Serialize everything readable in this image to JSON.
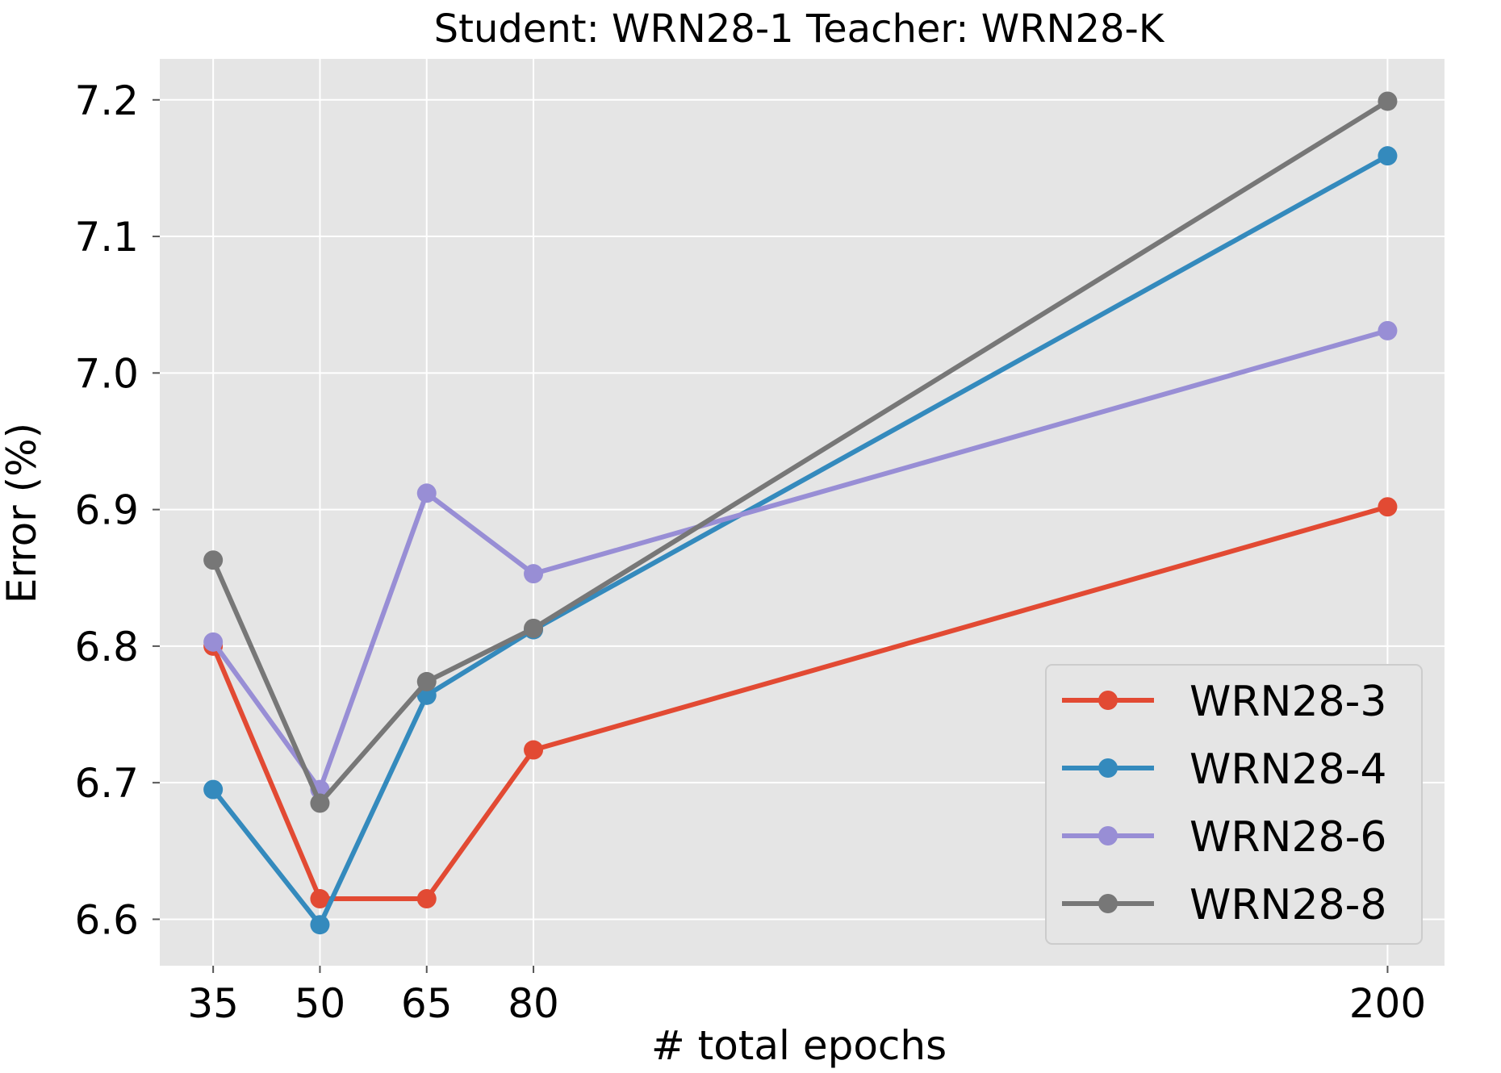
{
  "chart_data": {
    "type": "line",
    "title": "Student: WRN28-1  Teacher: WRN28-K",
    "xlabel": "# total epochs",
    "ylabel": "Error (%)",
    "x": [
      35,
      50,
      65,
      80,
      200
    ],
    "x_tick_labels": [
      "35",
      "50",
      "65",
      "80",
      "200"
    ],
    "xlim": [
      27.5,
      208
    ],
    "y_ticks": [
      6.6,
      6.7,
      6.8,
      6.9,
      7.0,
      7.1,
      7.2
    ],
    "y_tick_labels": [
      "6.6",
      "6.7",
      "6.8",
      "6.9",
      "7.0",
      "7.1",
      "7.2"
    ],
    "ylim": [
      6.566,
      7.23
    ],
    "grid": true,
    "legend_position": "lower right",
    "colors": {
      "plot_background": "#e5e5e5",
      "grid": "#ffffff"
    },
    "series": [
      {
        "name": "WRN28-3",
        "color": "#e24a33",
        "values": [
          6.8,
          6.615,
          6.615,
          6.724,
          6.902
        ]
      },
      {
        "name": "WRN28-4",
        "color": "#348abd",
        "values": [
          6.695,
          6.596,
          6.764,
          6.812,
          7.159
        ]
      },
      {
        "name": "WRN28-6",
        "color": "#988ed5",
        "values": [
          6.803,
          6.695,
          6.912,
          6.853,
          7.031
        ]
      },
      {
        "name": "WRN28-8",
        "color": "#777777",
        "values": [
          6.863,
          6.685,
          6.774,
          6.813,
          7.199
        ]
      }
    ]
  }
}
